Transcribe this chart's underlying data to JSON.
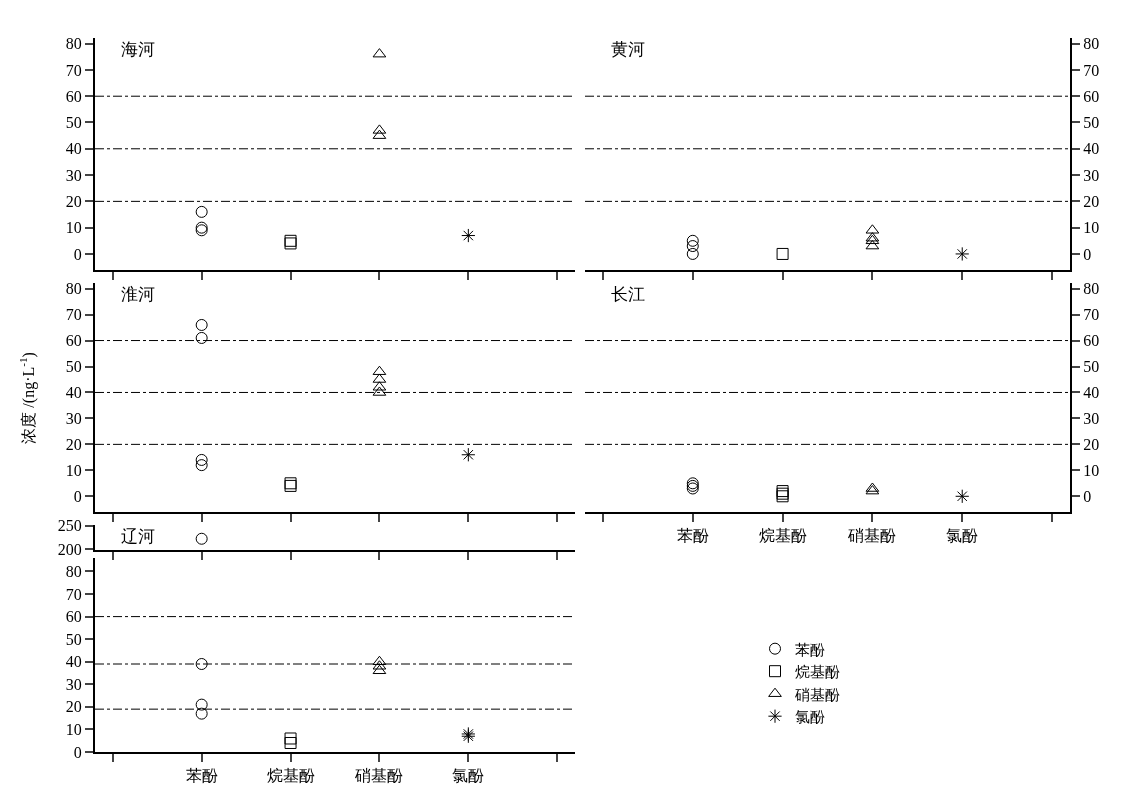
{
  "chart_data": [
    {
      "type": "scatter",
      "title": "海河",
      "categories": [
        null,
        "苯酚",
        "烷基酚",
        "硝基酚",
        "氯酚",
        null
      ],
      "ylim": [
        -6,
        82
      ],
      "yticks": [
        0,
        10,
        20,
        30,
        40,
        50,
        60,
        70,
        80
      ],
      "tick_labels": "y",
      "ref_lines": [
        {
          "axis": "y",
          "value": 20
        },
        {
          "axis": "y",
          "value": 40
        },
        {
          "axis": "y",
          "value": 60
        }
      ],
      "series": [
        {
          "color": "#000000",
          "marker": "circle",
          "x": [
            "苯酚",
            "苯酚",
            "苯酚"
          ],
          "values": [
            16,
            10,
            9
          ]
        },
        {
          "color": "#000000",
          "marker": "square",
          "x": [
            "烷基酚",
            "烷基酚"
          ],
          "values": [
            5,
            4
          ]
        },
        {
          "color": "#000000",
          "marker": "triangle",
          "x": [
            "硝基酚",
            "硝基酚",
            "硝基酚"
          ],
          "values": [
            76,
            47,
            45
          ]
        },
        {
          "color": "#000000",
          "marker": "cross",
          "x": [
            "氯酚"
          ],
          "values": [
            7
          ]
        }
      ]
    },
    {
      "type": "scatter",
      "title": "黄河",
      "categories": [
        null,
        "苯酚",
        "烷基酚",
        "硝基酚",
        "氯酚",
        null
      ],
      "ylim": [
        -6,
        82
      ],
      "yticks": [
        0,
        10,
        20,
        30,
        40,
        50,
        60,
        70,
        80
      ],
      "tick_labels": "y",
      "ref_lines": [
        {
          "axis": "y",
          "value": 20
        },
        {
          "axis": "y",
          "value": 40
        },
        {
          "axis": "y",
          "value": 60
        }
      ],
      "series": [
        {
          "color": "#000000",
          "marker": "circle",
          "x": [
            "苯酚",
            "苯酚",
            "苯酚"
          ],
          "values": [
            5,
            3,
            0
          ]
        },
        {
          "color": "#000000",
          "marker": "square",
          "x": [
            "烷基酚"
          ],
          "values": [
            0
          ]
        },
        {
          "color": "#000000",
          "marker": "triangle",
          "x": [
            "硝基酚",
            "硝基酚",
            "硝基酚",
            "硝基酚"
          ],
          "values": [
            9,
            6,
            5,
            3
          ]
        },
        {
          "color": "#000000",
          "marker": "cross",
          "x": [
            "氯酚"
          ],
          "values": [
            0
          ]
        }
      ]
    },
    {
      "type": "scatter",
      "title": "淮河",
      "ylabel": "浓度 /(ng·L$^{-1}$)",
      "categories": [
        null,
        "苯酚",
        "烷基酚",
        "硝基酚",
        "氯酚",
        null
      ],
      "ylim": [
        -6,
        82
      ],
      "yticks": [
        0,
        10,
        20,
        30,
        40,
        50,
        60,
        70,
        80
      ],
      "tick_labels": "y",
      "ref_lines": [
        {
          "axis": "y",
          "value": 20
        },
        {
          "axis": "y",
          "value": 40
        },
        {
          "axis": "y",
          "value": 60
        }
      ],
      "series": [
        {
          "color": "#000000",
          "marker": "circle",
          "x": [
            "苯酚",
            "苯酚",
            "苯酚",
            "苯酚"
          ],
          "values": [
            66,
            61,
            14,
            12
          ]
        },
        {
          "color": "#000000",
          "marker": "square",
          "x": [
            "烷基酚",
            "烷基酚"
          ],
          "values": [
            5,
            4
          ]
        },
        {
          "color": "#000000",
          "marker": "triangle",
          "x": [
            "硝基酚",
            "硝基酚",
            "硝基酚",
            "硝基酚"
          ],
          "values": [
            48,
            45,
            42,
            40
          ]
        },
        {
          "color": "#000000",
          "marker": "cross",
          "x": [
            "氯酚"
          ],
          "values": [
            16
          ]
        }
      ]
    },
    {
      "type": "scatter",
      "title": "长江",
      "categories": [
        null,
        "苯酚",
        "烷基酚",
        "硝基酚",
        "氯酚",
        null
      ],
      "ylim": [
        -6,
        82
      ],
      "yticks": [
        0,
        10,
        20,
        30,
        40,
        50,
        60,
        70,
        80
      ],
      "ref_lines": [
        {
          "axis": "y",
          "value": 20
        },
        {
          "axis": "y",
          "value": 40
        },
        {
          "axis": "y",
          "value": 60
        }
      ],
      "series": [
        {
          "color": "#000000",
          "marker": "circle",
          "x": [
            "苯酚",
            "苯酚",
            "苯酚"
          ],
          "values": [
            5,
            4,
            3
          ]
        },
        {
          "color": "#000000",
          "marker": "square",
          "x": [
            "烷基酚",
            "烷基酚",
            "烷基酚"
          ],
          "values": [
            2,
            1,
            0
          ]
        },
        {
          "color": "#000000",
          "marker": "triangle",
          "x": [
            "硝基酚",
            "硝基酚"
          ],
          "values": [
            3,
            2
          ]
        },
        {
          "color": "#000000",
          "marker": "cross",
          "x": [
            "氯酚"
          ],
          "values": [
            0
          ]
        }
      ]
    },
    {
      "type": "scatter",
      "title": "辽河",
      "categories": [
        null,
        "苯酚",
        "烷基酚",
        "硝基酚",
        "氯酚",
        null
      ],
      "ylim": [
        198,
        252
      ],
      "yticks": [
        200,
        250
      ],
      "tick_labels": "y",
      "series": [
        {
          "color": "#000000",
          "marker": "circle",
          "x": [
            "苯酚"
          ],
          "values": [
            222
          ]
        }
      ]
    },
    {
      "type": "scatter",
      "categories": [
        null,
        "苯酚",
        "烷基酚",
        "硝基酚",
        "氯酚",
        null
      ],
      "ylim": [
        0,
        86
      ],
      "yticks": [
        0,
        10,
        20,
        30,
        40,
        50,
        60,
        70,
        80
      ],
      "legend": "right",
      "ref_lines": [
        {
          "axis": "y",
          "value": 19
        },
        {
          "axis": "y",
          "value": 39
        },
        {
          "axis": "y",
          "value": 60
        }
      ],
      "series": [
        {
          "name": "苯酚",
          "color": "#000000",
          "marker": "circle",
          "x": [
            "苯酚",
            "苯酚",
            "苯酚"
          ],
          "values": [
            39,
            21,
            17
          ]
        },
        {
          "name": "烷基酚",
          "color": "#000000",
          "marker": "square",
          "x": [
            "烷基酚",
            "烷基酚"
          ],
          "values": [
            6,
            4
          ]
        },
        {
          "name": "硝基酚",
          "color": "#000000",
          "marker": "triangle",
          "x": [
            "硝基酚",
            "硝基酚",
            "硝基酚"
          ],
          "values": [
            40,
            38,
            36
          ]
        },
        {
          "name": "氯酚",
          "color": "#000000",
          "marker": "cross",
          "x": [
            "氯酚",
            "氯酚"
          ],
          "values": [
            8,
            7
          ]
        }
      ]
    }
  ]
}
